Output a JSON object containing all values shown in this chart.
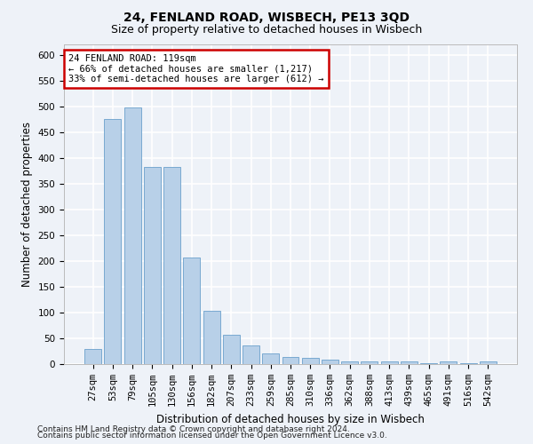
{
  "title1": "24, FENLAND ROAD, WISBECH, PE13 3QD",
  "title2": "Size of property relative to detached houses in Wisbech",
  "xlabel": "Distribution of detached houses by size in Wisbech",
  "ylabel": "Number of detached properties",
  "categories": [
    "27sqm",
    "53sqm",
    "79sqm",
    "105sqm",
    "130sqm",
    "156sqm",
    "182sqm",
    "207sqm",
    "233sqm",
    "259sqm",
    "285sqm",
    "310sqm",
    "336sqm",
    "362sqm",
    "388sqm",
    "413sqm",
    "439sqm",
    "465sqm",
    "491sqm",
    "516sqm",
    "542sqm"
  ],
  "values": [
    30,
    475,
    497,
    383,
    383,
    207,
    103,
    57,
    37,
    20,
    13,
    12,
    9,
    5,
    5,
    5,
    5,
    1,
    5,
    1,
    5
  ],
  "bar_color": "#b8d0e8",
  "bar_edge_color": "#6aa0cc",
  "annotation_line1": "24 FENLAND ROAD: 119sqm",
  "annotation_line2": "← 66% of detached houses are smaller (1,217)",
  "annotation_line3": "33% of semi-detached houses are larger (612) →",
  "annotation_box_color": "#ffffff",
  "annotation_box_edge": "#cc0000",
  "ylim": [
    0,
    620
  ],
  "yticks": [
    0,
    50,
    100,
    150,
    200,
    250,
    300,
    350,
    400,
    450,
    500,
    550,
    600
  ],
  "background_color": "#eef2f8",
  "grid_color": "#ffffff",
  "footer1": "Contains HM Land Registry data © Crown copyright and database right 2024.",
  "footer2": "Contains public sector information licensed under the Open Government Licence v3.0.",
  "title1_fontsize": 10,
  "title2_fontsize": 9,
  "xlabel_fontsize": 8.5,
  "ylabel_fontsize": 8.5,
  "tick_fontsize": 7.5,
  "annotation_fontsize": 7.5,
  "footer_fontsize": 6.5
}
